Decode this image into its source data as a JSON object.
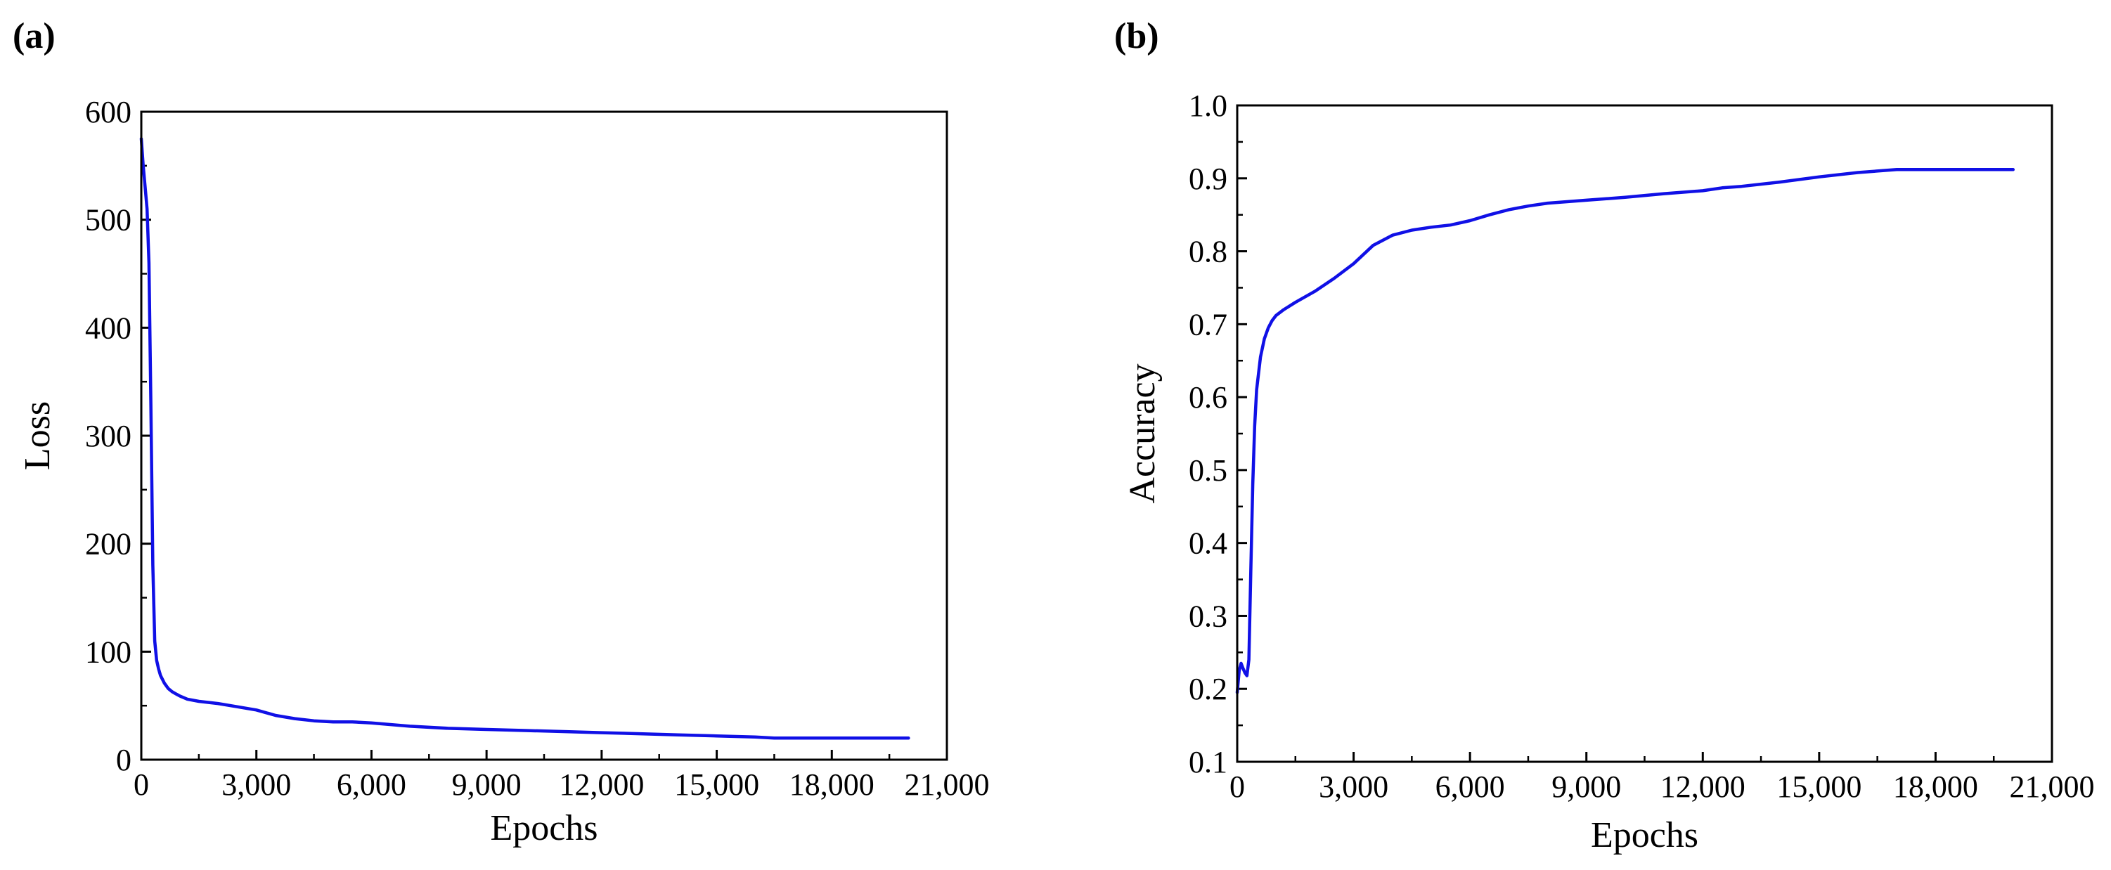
{
  "chart_data": [
    {
      "panel_label": "(a)",
      "type": "line",
      "xlabel": "Epochs",
      "ylabel": "Loss",
      "xlim": [
        0,
        21000
      ],
      "ylim": [
        0,
        600
      ],
      "xticks": [
        0,
        3000,
        6000,
        9000,
        12000,
        15000,
        18000,
        21000
      ],
      "xtick_labels": [
        "0",
        "3,000",
        "6,000",
        "9,000",
        "12,000",
        "15,000",
        "18,000",
        "21,000"
      ],
      "yticks": [
        0,
        100,
        200,
        300,
        400,
        500,
        600
      ],
      "ytick_labels": [
        "0",
        "100",
        "200",
        "300",
        "400",
        "500",
        "600"
      ],
      "grid": false,
      "series_color": "#1010e6",
      "series": [
        {
          "x": [
            0,
            50,
            100,
            150,
            200,
            250,
            300,
            350,
            400,
            450,
            500,
            600,
            700,
            800,
            900,
            1000,
            1200,
            1500,
            2000,
            2500,
            3000,
            3500,
            4000,
            4500,
            5000,
            5500,
            6000,
            7000,
            8000,
            9000,
            10000,
            11000,
            12000,
            13000,
            14000,
            15000,
            16000,
            16500,
            17000,
            18000,
            19000,
            20000
          ],
          "y": [
            575,
            550,
            530,
            510,
            460,
            330,
            180,
            110,
            92,
            84,
            78,
            71,
            66,
            63,
            61,
            59,
            56,
            54,
            52,
            49,
            46,
            41,
            38,
            36,
            35,
            35,
            34,
            31,
            29,
            28,
            27,
            26,
            25,
            24,
            23,
            22,
            21,
            20,
            20,
            20,
            20,
            20
          ]
        }
      ]
    },
    {
      "panel_label": "(b)",
      "type": "line",
      "xlabel": "Epochs",
      "ylabel": "Accuracy",
      "xlim": [
        0,
        21000
      ],
      "ylim": [
        0.1,
        1.0
      ],
      "xticks": [
        0,
        3000,
        6000,
        9000,
        12000,
        15000,
        18000,
        21000
      ],
      "xtick_labels": [
        "0",
        "3,000",
        "6,000",
        "9,000",
        "12,000",
        "15,000",
        "18,000",
        "21,000"
      ],
      "yticks": [
        0.1,
        0.2,
        0.3,
        0.4,
        0.5,
        0.6,
        0.7,
        0.8,
        0.9,
        1.0
      ],
      "ytick_labels": [
        "0.1",
        "0.2",
        "0.3",
        "0.4",
        "0.5",
        "0.6",
        "0.7",
        "0.8",
        "0.9",
        "1.0"
      ],
      "grid": false,
      "series_color": "#1010e6",
      "series": [
        {
          "x": [
            0,
            50,
            100,
            150,
            200,
            250,
            300,
            350,
            400,
            450,
            500,
            600,
            700,
            800,
            900,
            1000,
            1200,
            1500,
            2000,
            2500,
            3000,
            3500,
            4000,
            4500,
            5000,
            5500,
            6000,
            6500,
            7000,
            7500,
            8000,
            9000,
            10000,
            11000,
            12000,
            12500,
            13000,
            14000,
            15000,
            16000,
            17000,
            18000,
            19000,
            20000
          ],
          "y": [
            0.195,
            0.225,
            0.235,
            0.228,
            0.222,
            0.218,
            0.24,
            0.36,
            0.48,
            0.56,
            0.61,
            0.655,
            0.68,
            0.695,
            0.705,
            0.712,
            0.72,
            0.73,
            0.745,
            0.763,
            0.783,
            0.808,
            0.822,
            0.829,
            0.833,
            0.836,
            0.842,
            0.85,
            0.857,
            0.862,
            0.866,
            0.87,
            0.874,
            0.879,
            0.883,
            0.887,
            0.889,
            0.895,
            0.902,
            0.908,
            0.912,
            0.912,
            0.912,
            0.912
          ]
        }
      ]
    }
  ]
}
